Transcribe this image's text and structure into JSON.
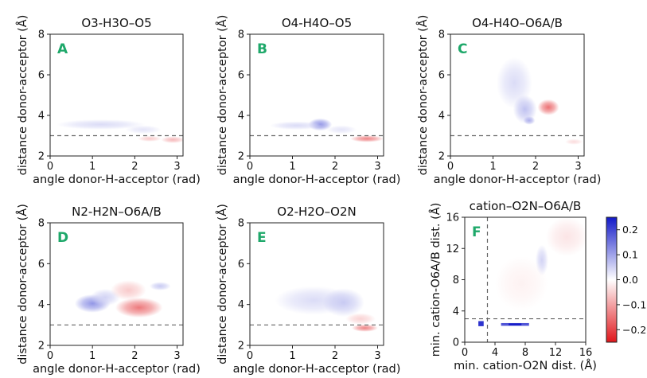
{
  "chart_data": [
    {
      "type": "heatmap",
      "panel_label": "A",
      "title": "O3-H3O–O5",
      "xlabel": "angle donor-H-acceptor (rad)",
      "ylabel": "distance donor-acceptor (Å)",
      "xlim": [
        0,
        3.14
      ],
      "ylim": [
        2,
        8
      ],
      "xticks": [
        "0",
        "1",
        "2",
        "3"
      ],
      "yticks": [
        "2",
        "4",
        "6",
        "8"
      ],
      "reference_line_y": 3.0,
      "blobs": [
        {
          "x": 1.2,
          "y": 3.55,
          "sx": 0.75,
          "sy": 0.18,
          "value": 0.04
        },
        {
          "x": 2.2,
          "y": 3.3,
          "sx": 0.3,
          "sy": 0.15,
          "value": 0.03
        },
        {
          "x": 2.9,
          "y": 2.8,
          "sx": 0.2,
          "sy": 0.12,
          "value": -0.08
        },
        {
          "x": 2.35,
          "y": 2.85,
          "sx": 0.2,
          "sy": 0.1,
          "value": -0.06
        }
      ]
    },
    {
      "type": "heatmap",
      "panel_label": "B",
      "title": "O4-H4O–O5",
      "xlabel": "angle donor-H-acceptor (rad)",
      "ylabel": "distance donor-acceptor (Å)",
      "xlim": [
        0,
        3.14
      ],
      "ylim": [
        2,
        8
      ],
      "xticks": [
        "0",
        "1",
        "2",
        "3"
      ],
      "yticks": [
        "2",
        "4",
        "6",
        "8"
      ],
      "reference_line_y": 3.0,
      "blobs": [
        {
          "x": 1.65,
          "y": 3.55,
          "sx": 0.2,
          "sy": 0.22,
          "value": 0.12
        },
        {
          "x": 1.1,
          "y": 3.5,
          "sx": 0.45,
          "sy": 0.15,
          "value": 0.04
        },
        {
          "x": 2.15,
          "y": 3.3,
          "sx": 0.25,
          "sy": 0.15,
          "value": 0.03
        },
        {
          "x": 2.75,
          "y": 2.85,
          "sx": 0.28,
          "sy": 0.12,
          "value": -0.14
        }
      ]
    },
    {
      "type": "heatmap",
      "panel_label": "C",
      "title": "O4-H4O–O6A/B",
      "xlabel": "angle donor-H-acceptor (rad)",
      "ylabel": "distance donor-acceptor (Å)",
      "xlim": [
        0,
        3.14
      ],
      "ylim": [
        2,
        8
      ],
      "xticks": [
        "0",
        "1",
        "2",
        "3"
      ],
      "yticks": [
        "2",
        "4",
        "6",
        "8"
      ],
      "reference_line_y": 3.0,
      "blobs": [
        {
          "x": 1.5,
          "y": 5.6,
          "sx": 0.3,
          "sy": 0.9,
          "value": 0.04
        },
        {
          "x": 1.75,
          "y": 4.3,
          "sx": 0.2,
          "sy": 0.5,
          "value": 0.07
        },
        {
          "x": 1.85,
          "y": 3.75,
          "sx": 0.1,
          "sy": 0.15,
          "value": 0.09
        },
        {
          "x": 2.3,
          "y": 4.4,
          "sx": 0.18,
          "sy": 0.28,
          "value": -0.16
        },
        {
          "x": 2.9,
          "y": 2.7,
          "sx": 0.15,
          "sy": 0.1,
          "value": -0.04
        }
      ]
    },
    {
      "type": "heatmap",
      "panel_label": "D",
      "title": "N2-H2N–O6A/B",
      "xlabel": "angle donor-H-acceptor (rad)",
      "ylabel": "distance donor-acceptor (Å)",
      "xlim": [
        0,
        3.14
      ],
      "ylim": [
        2,
        8
      ],
      "xticks": [
        "0",
        "1",
        "2",
        "3"
      ],
      "yticks": [
        "2",
        "4",
        "6",
        "8"
      ],
      "reference_line_y": 3.0,
      "blobs": [
        {
          "x": 1.0,
          "y": 4.05,
          "sx": 0.3,
          "sy": 0.32,
          "value": 0.12
        },
        {
          "x": 1.3,
          "y": 4.35,
          "sx": 0.25,
          "sy": 0.3,
          "value": 0.05
        },
        {
          "x": 2.1,
          "y": 3.85,
          "sx": 0.4,
          "sy": 0.35,
          "value": -0.15
        },
        {
          "x": 1.85,
          "y": 4.7,
          "sx": 0.3,
          "sy": 0.35,
          "value": -0.06
        },
        {
          "x": 2.6,
          "y": 4.9,
          "sx": 0.18,
          "sy": 0.15,
          "value": 0.06
        }
      ]
    },
    {
      "type": "heatmap",
      "panel_label": "E",
      "title": "O2-H2O–O2N",
      "xlabel": "angle donor-H-acceptor (rad)",
      "ylabel": "distance donor-acceptor (Å)",
      "xlim": [
        0,
        3.14
      ],
      "ylim": [
        2,
        8
      ],
      "xticks": [
        "0",
        "1",
        "2",
        "3"
      ],
      "yticks": [
        "2",
        "4",
        "6",
        "8"
      ],
      "reference_line_y": 3.0,
      "blobs": [
        {
          "x": 1.5,
          "y": 4.2,
          "sx": 0.65,
          "sy": 0.5,
          "value": 0.04
        },
        {
          "x": 2.2,
          "y": 4.1,
          "sx": 0.35,
          "sy": 0.5,
          "value": 0.06
        },
        {
          "x": 2.7,
          "y": 2.85,
          "sx": 0.22,
          "sy": 0.13,
          "value": -0.14
        },
        {
          "x": 2.6,
          "y": 3.3,
          "sx": 0.25,
          "sy": 0.2,
          "value": -0.05
        }
      ]
    },
    {
      "type": "heatmap",
      "panel_label": "F",
      "title": "cation–O2N–O6A/B",
      "xlabel": "min. cation-O2N dist. (Å)",
      "ylabel": "min. cation-O6A/B dist. (Å)",
      "xlim": [
        0,
        16
      ],
      "ylim": [
        0,
        16
      ],
      "xticks": [
        "0",
        "4",
        "8",
        "12",
        "16"
      ],
      "yticks": [
        "0",
        "4",
        "8",
        "12",
        "16"
      ],
      "reference_line_y": 3.0,
      "reference_line_x": 3.0,
      "blobs": [
        {
          "x": 13.5,
          "y": 13.5,
          "sx": 2.0,
          "sy": 1.8,
          "value": -0.03
        },
        {
          "x": 10.2,
          "y": 10.5,
          "sx": 0.6,
          "sy": 1.4,
          "value": 0.05
        },
        {
          "x": 7.5,
          "y": 7.5,
          "sx": 2.5,
          "sy": 2.5,
          "value": -0.015
        }
      ],
      "bars": [
        {
          "x0": 1.8,
          "x1": 2.5,
          "y0": 2.05,
          "y1": 2.7,
          "value": 0.24
        },
        {
          "x0": 4.8,
          "x1": 8.5,
          "y0": 2.1,
          "y1": 2.45,
          "value": 0.2
        },
        {
          "x0": 5.8,
          "x1": 7.5,
          "y0": 2.15,
          "y1": 2.4,
          "value": 0.25
        }
      ]
    }
  ],
  "colorbar": {
    "min": -0.25,
    "max": 0.25,
    "ticks": [
      0.2,
      0.1,
      0.0,
      -0.1,
      -0.2
    ],
    "tick_labels": [
      "0.2",
      "0.1",
      "0.0",
      "−0.1",
      "−0.2"
    ],
    "colormap": "bwr",
    "colors": {
      "negative": "#e0161b",
      "neutral": "#ffffff",
      "positive": "#1219c8"
    }
  },
  "colors": {
    "panel_label": "#1ea86a",
    "reference_line": "#666666"
  }
}
